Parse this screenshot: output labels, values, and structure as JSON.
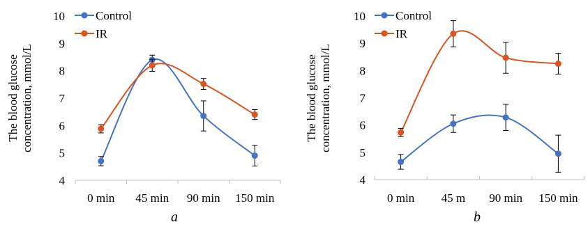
{
  "chart_data": [
    {
      "type": "line",
      "panel_label": "a",
      "categories": [
        "0 min",
        "45 min",
        "90 min",
        "150 min"
      ],
      "ylabel_line1": "The blood glucose",
      "ylabel_line2": "concentration, mmol/L",
      "xlabel": "",
      "ylim": [
        4,
        10
      ],
      "yticks": [
        "4",
        "5",
        "6",
        "7",
        "8",
        "9",
        "10"
      ],
      "legend_position": "top-left",
      "series": [
        {
          "name": "Control",
          "color": "#4472C4",
          "values": [
            4.7,
            8.4,
            6.35,
            4.9
          ],
          "errors": [
            0.17,
            0.17,
            0.55,
            0.38
          ]
        },
        {
          "name": "IR",
          "color": "#D9541E",
          "values": [
            5.88,
            8.2,
            7.52,
            6.4
          ],
          "errors": [
            0.15,
            0.22,
            0.2,
            0.18
          ]
        }
      ]
    },
    {
      "type": "line",
      "panel_label": "b",
      "categories": [
        "0 min",
        "45 m",
        "90 min",
        "150 min"
      ],
      "ylabel_line1": "The blood glucose",
      "ylabel_line2": "concentration, mmol/L",
      "xlabel": "",
      "ylim": [
        4,
        10
      ],
      "yticks": [
        "4",
        "5",
        "6",
        "7",
        "8",
        "9",
        "10"
      ],
      "legend_position": "top-left",
      "series": [
        {
          "name": "Control",
          "color": "#4472C4",
          "values": [
            4.65,
            6.05,
            6.28,
            4.95
          ],
          "errors": [
            0.27,
            0.32,
            0.48,
            0.68
          ]
        },
        {
          "name": "IR",
          "color": "#D9541E",
          "values": [
            5.73,
            9.35,
            8.47,
            8.25
          ],
          "errors": [
            0.15,
            0.48,
            0.57,
            0.38
          ]
        }
      ]
    }
  ]
}
